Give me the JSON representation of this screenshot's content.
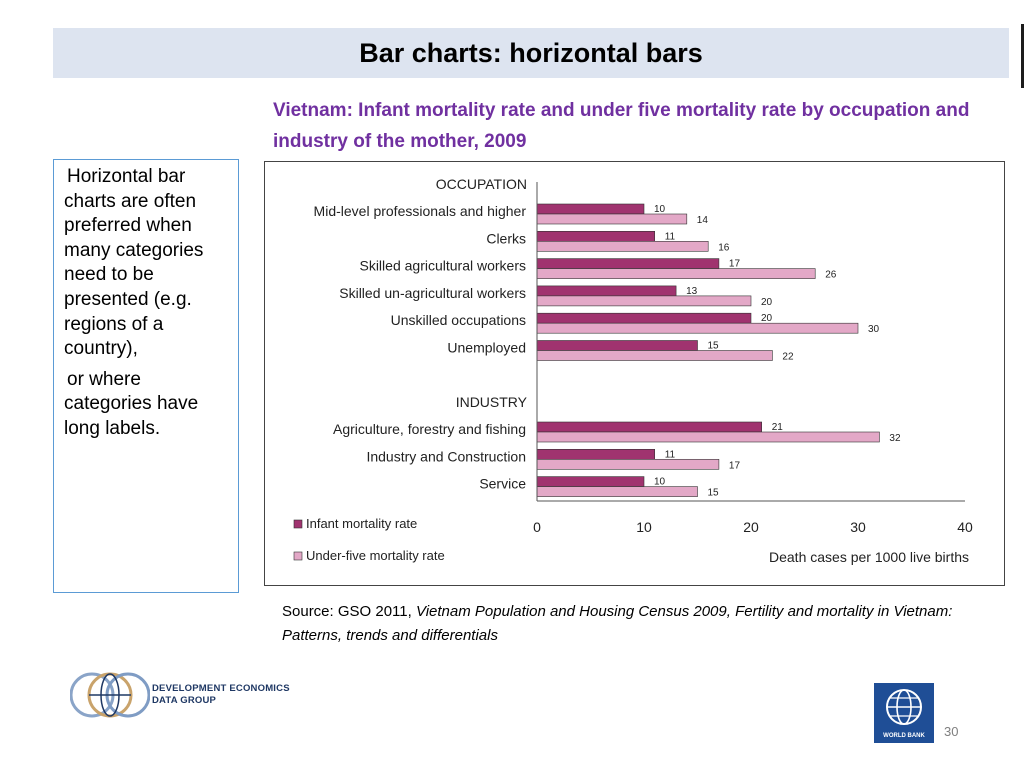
{
  "slide": {
    "title": "Bar charts: horizontal bars",
    "subtitle": "Vietnam: Infant mortality rate and under five mortality rate by occupation and industry of the mother, 2009",
    "sidebar_paragraphs": [
      "Horizontal bar charts are often preferred when many categories need to be presented (e.g. regions of a country),",
      "or where categories have long labels."
    ],
    "source_prefix": "Source: GSO 2011, ",
    "source_italic": "Vietnam Population and Housing Census 2009, Fertility and mortality in Vietnam: Patterns, trends and differentials",
    "logo_text_line1": "DEVELOPMENT ECONOMICS",
    "logo_text_line2": "DATA GROUP",
    "wb_logo_text": "WORLD BANK",
    "page_number": "30"
  },
  "chart_data": {
    "type": "bar",
    "orientation": "horizontal",
    "groups": [
      {
        "heading": "OCCUPATION",
        "categories": [
          "Mid-level professionals and higher",
          "Clerks",
          "Skilled agricultural workers",
          "Skilled un-agricultural workers",
          "Unskilled occupations",
          "Unemployed"
        ],
        "infant": [
          10,
          11,
          17,
          13,
          20,
          15
        ],
        "under_five": [
          14,
          16,
          26,
          20,
          30,
          22
        ]
      },
      {
        "heading": "INDUSTRY",
        "categories": [
          "Agriculture, forestry and fishing",
          "Industry and Construction",
          "Service"
        ],
        "infant": [
          21,
          11,
          10
        ],
        "under_five": [
          32,
          17,
          15
        ]
      }
    ],
    "series": [
      {
        "name": "Infant mortality rate",
        "color": "#a0336f"
      },
      {
        "name": "Under-five mortality rate",
        "color": "#e3a8c7"
      }
    ],
    "xlabel": "Death cases per 1000 live births",
    "xticks": [
      0,
      10,
      20,
      30,
      40
    ],
    "xlim": [
      0,
      40
    ],
    "legend": "bottom-left",
    "grid": false
  }
}
